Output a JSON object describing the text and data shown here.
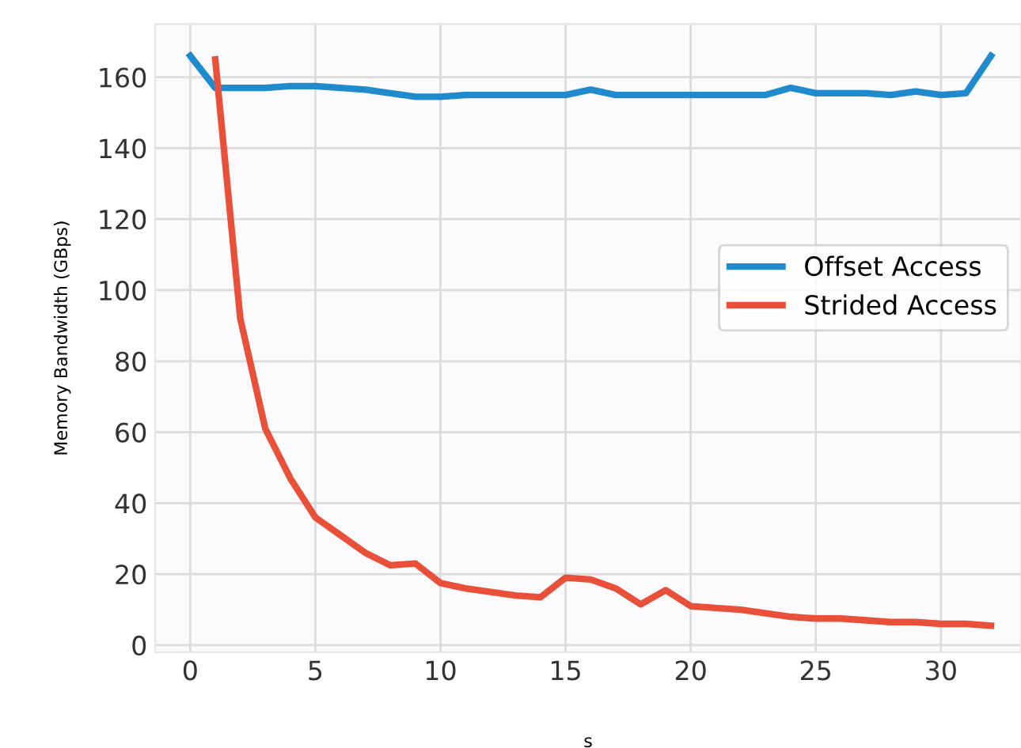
{
  "chart_data": {
    "type": "line",
    "xlabel": "s",
    "ylabel": "Memory Bandwidth (GBps)",
    "x": [
      0,
      1,
      2,
      3,
      4,
      5,
      6,
      7,
      8,
      9,
      10,
      11,
      12,
      13,
      14,
      15,
      16,
      17,
      18,
      19,
      20,
      21,
      22,
      23,
      24,
      25,
      26,
      27,
      28,
      29,
      30,
      31,
      32
    ],
    "series": [
      {
        "name": "Offset Access",
        "color": "#1f8bcc",
        "values": [
          166,
          157,
          157,
          157,
          157.5,
          157.5,
          157,
          156.5,
          155.5,
          154.5,
          154.5,
          155,
          155,
          155,
          155,
          155,
          156.5,
          155,
          155,
          155,
          155,
          155,
          155,
          155,
          157,
          155.5,
          155.5,
          155.5,
          155,
          156,
          155,
          155.5,
          166
        ]
      },
      {
        "name": "Strided Access",
        "color": "#e8503a",
        "values": [
          null,
          165,
          92,
          61,
          47,
          36,
          31,
          26,
          22.5,
          23,
          17.5,
          16,
          15,
          14,
          13.5,
          19,
          18.5,
          16,
          11.5,
          15.5,
          11,
          10.5,
          10,
          9,
          8,
          7.5,
          7.5,
          7,
          6.5,
          6.5,
          6,
          6,
          5.5
        ]
      }
    ],
    "xlim": [
      -1.4,
      33.2
    ],
    "ylim": [
      -2,
      175
    ],
    "xticks": [
      0,
      5,
      10,
      15,
      20,
      25,
      30
    ],
    "yticks": [
      0,
      20,
      40,
      60,
      80,
      100,
      120,
      140,
      160
    ],
    "grid": true,
    "legend": "right",
    "marker": "none",
    "line_style": "solid"
  }
}
